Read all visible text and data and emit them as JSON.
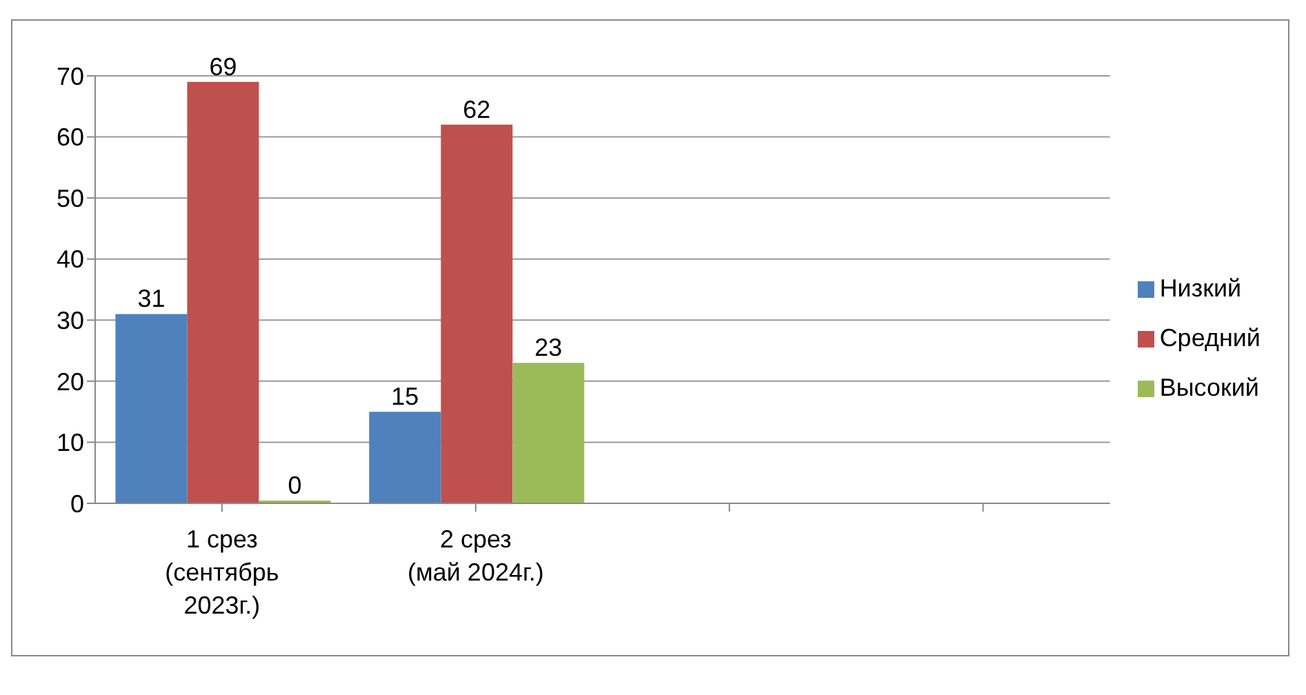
{
  "chart_data": {
    "type": "bar",
    "categories": [
      "1 срез (сентябрь 2023г.)",
      "2 срез (май 2024г.)",
      null,
      null
    ],
    "series": [
      {
        "name": "Низкий",
        "color": "#4f81bd",
        "values": [
          31,
          15,
          null,
          null
        ]
      },
      {
        "name": "Средний",
        "color": "#c0504d",
        "values": [
          69,
          62,
          null,
          null
        ]
      },
      {
        "name": "Высокий",
        "color": "#9bbb59",
        "values": [
          0,
          23,
          null,
          null
        ]
      }
    ],
    "ylim": [
      0,
      70
    ],
    "yticks": [
      0,
      10,
      20,
      30,
      40,
      50,
      60,
      70
    ],
    "grid": "y",
    "legend": "right",
    "data_labels": true
  }
}
